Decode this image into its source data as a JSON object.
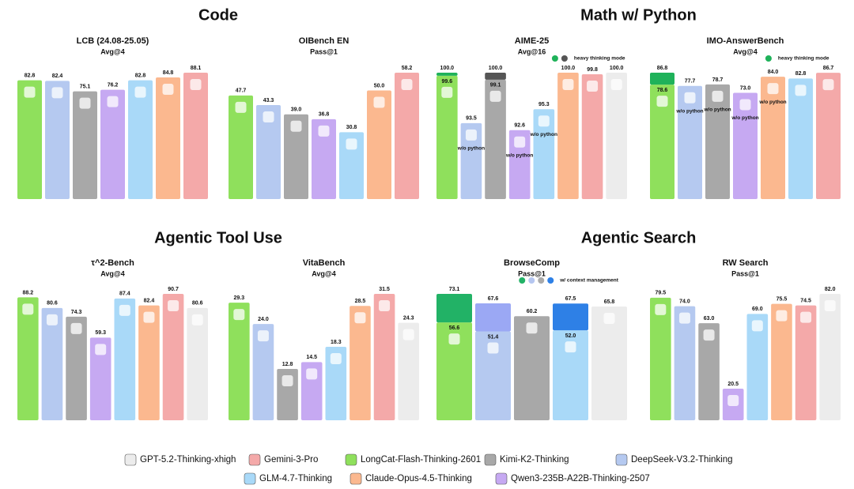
{
  "sections": [
    "Code",
    "Math w/ Python",
    "Agentic Tool Use",
    "Agentic Search"
  ],
  "legend": [
    {
      "name": "GPT-5.2-Thinking-xhigh",
      "color": "#ececec"
    },
    {
      "name": "Gemini-3-Pro",
      "color": "#f4a9a9"
    },
    {
      "name": "LongCat-Flash-Thinking-2601",
      "color": "#8fe05c"
    },
    {
      "name": "Kimi-K2-Thinking",
      "color": "#a8a8a8"
    },
    {
      "name": "DeepSeek-V3.2-Thinking",
      "color": "#b5c9f0"
    },
    {
      "name": "GLM-4.7-Thinking",
      "color": "#a9d9f8"
    },
    {
      "name": "Claude-Opus-4.5-Thinking",
      "color": "#fbb88f"
    },
    {
      "name": "Qwen3-235B-A22B-Thinking-2507",
      "color": "#c6a9f2"
    }
  ],
  "chart_data": [
    {
      "type": "bar",
      "title": "LCB (24.08-25.05)",
      "subtitle": "Avg@4",
      "categories": [
        "LongCat-Flash-Thinking-2601",
        "DeepSeek-V3.2-Thinking",
        "Kimi-K2-Thinking",
        "Qwen3-235B-A22B-Thinking-2507",
        "GLM-4.7-Thinking",
        "Claude-Opus-4.5-Thinking",
        "Gemini-3-Pro"
      ],
      "values": [
        82.8,
        82.4,
        75.1,
        76.2,
        82.8,
        84.8,
        88.1
      ],
      "value_labels": [
        "82.8",
        "82.4",
        "75.1",
        "76.2",
        "82.8",
        "84.8",
        "88.1"
      ]
    },
    {
      "type": "bar",
      "title": "OIBench EN",
      "subtitle": "Pass@1",
      "categories": [
        "LongCat-Flash-Thinking-2601",
        "DeepSeek-V3.2-Thinking",
        "Kimi-K2-Thinking",
        "Qwen3-235B-A22B-Thinking-2507",
        "GLM-4.7-Thinking",
        "Claude-Opus-4.5-Thinking",
        "Gemini-3-Pro"
      ],
      "values": [
        47.7,
        43.3,
        39.0,
        36.8,
        30.8,
        50.0,
        58.2
      ],
      "value_labels": [
        "47.7",
        "43.3",
        "39.0",
        "36.8",
        "30.8",
        "50.0",
        "58.2"
      ]
    },
    {
      "type": "bar",
      "title": "AIME-25",
      "subtitle": "Avg@16",
      "categories": [
        "LongCat-Flash-Thinking-2601",
        "DeepSeek-V3.2-Thinking",
        "Kimi-K2-Thinking",
        "Qwen3-235B-A22B-Thinking-2507",
        "GLM-4.7-Thinking",
        "Claude-Opus-4.5-Thinking",
        "Gemini-3-Pro",
        "GPT-5.2-Thinking-xhigh"
      ],
      "values": [
        99.6,
        93.5,
        99.1,
        92.6,
        95.3,
        100.0,
        99.8,
        100.0
      ],
      "value_labels": [
        "99.6",
        "93.5",
        "99.1",
        "92.6",
        "95.3",
        "100.0",
        "99.8",
        "100.0"
      ],
      "heavy_values": [
        100.0,
        null,
        100.0,
        null,
        null,
        null,
        null,
        null
      ],
      "heavy_labels": [
        "100.0",
        null,
        "100.0",
        null,
        null,
        null,
        null,
        null
      ],
      "heavy_colors": [
        "#1fb25a",
        null,
        "#555555",
        null,
        null,
        null,
        null,
        null
      ],
      "bar_notes": [
        null,
        "w/o python",
        null,
        "w/o python",
        "w/o python",
        null,
        null,
        null
      ],
      "note": "heavy thinking mode",
      "note_colors": [
        "#1fb25a",
        "#555555"
      ]
    },
    {
      "type": "bar",
      "title": "IMO-AnswerBench",
      "subtitle": "Avg@4",
      "categories": [
        "LongCat-Flash-Thinking-2601",
        "DeepSeek-V3.2-Thinking",
        "Kimi-K2-Thinking",
        "Qwen3-235B-A22B-Thinking-2507",
        "Claude-Opus-4.5-Thinking",
        "GLM-4.7-Thinking",
        "Gemini-3-Pro"
      ],
      "values": [
        78.6,
        77.7,
        78.7,
        73.0,
        84.0,
        82.8,
        86.7
      ],
      "value_labels": [
        "78.6",
        "77.7",
        "78.7",
        "73.0",
        "84.0",
        "82.8",
        "86.7"
      ],
      "heavy_values": [
        86.8,
        null,
        null,
        null,
        null,
        null,
        null
      ],
      "heavy_labels": [
        "86.8",
        null,
        null,
        null,
        null,
        null,
        null
      ],
      "heavy_colors": [
        "#1fb25a",
        null,
        null,
        null,
        null,
        null,
        null
      ],
      "bar_notes": [
        null,
        "w/o python",
        "w/o python",
        "w/o python",
        "w/o python",
        null,
        null
      ],
      "note": "heavy thinking mode",
      "note_colors": [
        "#1fb25a"
      ]
    },
    {
      "type": "bar",
      "title": "τ^2-Bench",
      "subtitle": "Avg@4",
      "categories": [
        "LongCat-Flash-Thinking-2601",
        "DeepSeek-V3.2-Thinking",
        "Kimi-K2-Thinking",
        "Qwen3-235B-A22B-Thinking-2507",
        "GLM-4.7-Thinking",
        "Claude-Opus-4.5-Thinking",
        "Gemini-3-Pro",
        "GPT-5.2-Thinking-xhigh"
      ],
      "values": [
        88.2,
        80.6,
        74.3,
        59.3,
        87.4,
        82.4,
        90.7,
        80.6
      ],
      "value_labels": [
        "88.2",
        "80.6",
        "74.3",
        "59.3",
        "87.4",
        "82.4",
        "90.7",
        "80.6"
      ]
    },
    {
      "type": "bar",
      "title": "VitaBench",
      "subtitle": "Avg@4",
      "categories": [
        "LongCat-Flash-Thinking-2601",
        "DeepSeek-V3.2-Thinking",
        "Kimi-K2-Thinking",
        "Qwen3-235B-A22B-Thinking-2507",
        "GLM-4.7-Thinking",
        "Claude-Opus-4.5-Thinking",
        "Gemini-3-Pro",
        "GPT-5.2-Thinking-xhigh"
      ],
      "values": [
        29.3,
        24.0,
        12.8,
        14.5,
        18.3,
        28.5,
        31.5,
        24.3
      ],
      "value_labels": [
        "29.3",
        "24.0",
        "12.8",
        "14.5",
        "18.3",
        "28.5",
        "31.5",
        "24.3"
      ]
    },
    {
      "type": "bar",
      "title": "BrowseComp",
      "subtitle": "Pass@1",
      "categories": [
        "LongCat-Flash-Thinking-2601",
        "DeepSeek-V3.2-Thinking",
        "Kimi-K2-Thinking",
        "GLM-4.7-Thinking",
        "GPT-5.2-Thinking-xhigh"
      ],
      "values": [
        56.6,
        51.4,
        60.2,
        52.0,
        65.8
      ],
      "value_labels": [
        "56.6",
        "51.4",
        "60.2",
        "52.0",
        "65.8"
      ],
      "heavy_values": [
        73.1,
        67.6,
        null,
        67.5,
        null
      ],
      "heavy_labels": [
        "73.1",
        "67.6",
        null,
        "67.5",
        null
      ],
      "heavy_colors": [
        "#22b266",
        "#9ba8f4",
        null,
        "#2e80e6",
        null
      ],
      "note": "w/ context management",
      "note_colors": [
        "#22b266",
        "#b5c6f0",
        "#aaaaaa",
        "#2e80e6"
      ]
    },
    {
      "type": "bar",
      "title": "RW Search",
      "subtitle": "Pass@1",
      "categories": [
        "LongCat-Flash-Thinking-2601",
        "DeepSeek-V3.2-Thinking",
        "Kimi-K2-Thinking",
        "Qwen3-235B-A22B-Thinking-2507",
        "GLM-4.7-Thinking",
        "Claude-Opus-4.5-Thinking",
        "Gemini-3-Pro",
        "GPT-5.2-Thinking-xhigh"
      ],
      "values": [
        79.5,
        74.0,
        63.0,
        20.5,
        69.0,
        75.5,
        74.5,
        82.0
      ],
      "value_labels": [
        "79.5",
        "74.0",
        "63.0",
        "20.5",
        "69.0",
        "75.5",
        "74.5",
        "82.0"
      ]
    }
  ]
}
